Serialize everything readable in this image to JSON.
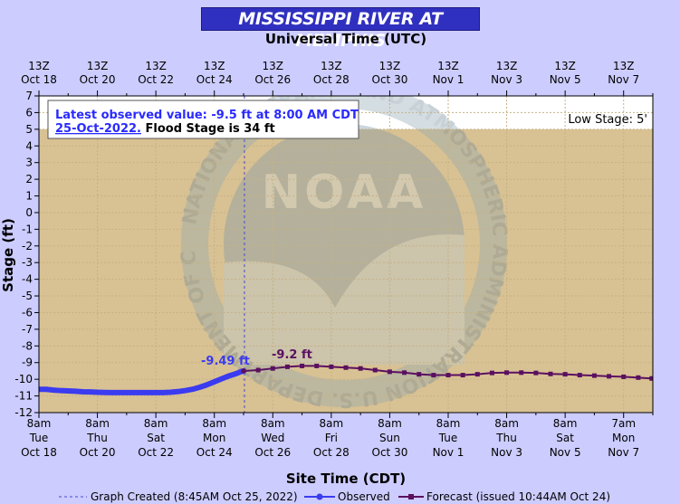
{
  "chart_data": {
    "type": "line",
    "title": "MISSISSIPPI RIVER AT MEMPHIS",
    "top_axis_label": "Universal Time (UTC)",
    "xlabel": "Site Time (CDT)",
    "ylabel": "Stage (ft)",
    "ylim": [
      -12,
      7
    ],
    "y_ticks": [
      7,
      6,
      5,
      4,
      3,
      2,
      1,
      0,
      -1,
      -2,
      -3,
      -4,
      -5,
      -6,
      -7,
      -8,
      -9,
      -10,
      -11,
      -12
    ],
    "top_ticks": [
      {
        "line1": "13Z",
        "line2": "Oct 18"
      },
      {
        "line1": "13Z",
        "line2": "Oct 20"
      },
      {
        "line1": "13Z",
        "line2": "Oct 22"
      },
      {
        "line1": "13Z",
        "line2": "Oct 24"
      },
      {
        "line1": "13Z",
        "line2": "Oct 26"
      },
      {
        "line1": "13Z",
        "line2": "Oct 28"
      },
      {
        "line1": "13Z",
        "line2": "Oct 30"
      },
      {
        "line1": "13Z",
        "line2": "Nov 1"
      },
      {
        "line1": "13Z",
        "line2": "Nov 3"
      },
      {
        "line1": "13Z",
        "line2": "Nov 5"
      },
      {
        "line1": "13Z",
        "line2": "Nov 7"
      }
    ],
    "bottom_ticks": [
      {
        "line1": "8am",
        "line2": "Tue",
        "line3": "Oct 18"
      },
      {
        "line1": "8am",
        "line2": "Thu",
        "line3": "Oct 20"
      },
      {
        "line1": "8am",
        "line2": "Sat",
        "line3": "Oct 22"
      },
      {
        "line1": "8am",
        "line2": "Mon",
        "line3": "Oct 24"
      },
      {
        "line1": "8am",
        "line2": "Wed",
        "line3": "Oct 26"
      },
      {
        "line1": "8am",
        "line2": "Fri",
        "line3": "Oct 28"
      },
      {
        "line1": "8am",
        "line2": "Sun",
        "line3": "Oct 30"
      },
      {
        "line1": "8am",
        "line2": "Tue",
        "line3": "Nov 1"
      },
      {
        "line1": "8am",
        "line2": "Thu",
        "line3": "Nov 3"
      },
      {
        "line1": "8am",
        "line2": "Sat",
        "line3": "Nov 5"
      },
      {
        "line1": "7am",
        "line2": "Mon",
        "line3": "Nov 7"
      }
    ],
    "x_range_days": [
      0,
      21.0
    ],
    "created_day": 7.03,
    "low_stage": 5,
    "low_stage_label": "Low Stage: 5'",
    "info_box": {
      "line1": "Latest observed value: -9.5 ft at 8:00 AM CDT",
      "line2_date": "25-Oct-2022.",
      "line2_rest": " Flood Stage is 34 ft"
    },
    "observed_peak_label": "-9.49 ft",
    "forecast_peak_label": "-9.2 ft",
    "observed": {
      "name": "Observed",
      "points": [
        [
          0.0,
          -10.6
        ],
        [
          0.25,
          -10.6
        ],
        [
          0.5,
          -10.65
        ],
        [
          0.75,
          -10.68
        ],
        [
          1.0,
          -10.7
        ],
        [
          1.25,
          -10.72
        ],
        [
          1.5,
          -10.75
        ],
        [
          1.75,
          -10.76
        ],
        [
          2.0,
          -10.78
        ],
        [
          2.25,
          -10.79
        ],
        [
          2.5,
          -10.8
        ],
        [
          2.75,
          -10.8
        ],
        [
          3.0,
          -10.8
        ],
        [
          3.25,
          -10.8
        ],
        [
          3.5,
          -10.8
        ],
        [
          3.75,
          -10.8
        ],
        [
          4.0,
          -10.8
        ],
        [
          4.25,
          -10.8
        ],
        [
          4.5,
          -10.78
        ],
        [
          4.75,
          -10.74
        ],
        [
          5.0,
          -10.68
        ],
        [
          5.25,
          -10.6
        ],
        [
          5.5,
          -10.48
        ],
        [
          5.75,
          -10.33
        ],
        [
          6.0,
          -10.15
        ],
        [
          6.25,
          -9.97
        ],
        [
          6.5,
          -9.8
        ],
        [
          6.75,
          -9.66
        ],
        [
          6.9,
          -9.55
        ],
        [
          7.0,
          -9.5
        ]
      ]
    },
    "forecast": {
      "name": "Forecast (issued 10:44AM Oct 24)",
      "points": [
        [
          7.0,
          -9.5
        ],
        [
          7.5,
          -9.45
        ],
        [
          8.0,
          -9.35
        ],
        [
          8.5,
          -9.25
        ],
        [
          9.0,
          -9.2
        ],
        [
          9.5,
          -9.2
        ],
        [
          10.0,
          -9.25
        ],
        [
          10.5,
          -9.3
        ],
        [
          11.0,
          -9.35
        ],
        [
          11.5,
          -9.45
        ],
        [
          12.0,
          -9.55
        ],
        [
          12.5,
          -9.6
        ],
        [
          13.0,
          -9.7
        ],
        [
          13.5,
          -9.75
        ],
        [
          14.0,
          -9.75
        ],
        [
          14.5,
          -9.75
        ],
        [
          15.0,
          -9.7
        ],
        [
          15.5,
          -9.62
        ],
        [
          16.0,
          -9.6
        ],
        [
          16.5,
          -9.6
        ],
        [
          17.0,
          -9.62
        ],
        [
          17.5,
          -9.68
        ],
        [
          18.0,
          -9.7
        ],
        [
          18.5,
          -9.75
        ],
        [
          19.0,
          -9.78
        ],
        [
          19.5,
          -9.82
        ],
        [
          20.0,
          -9.85
        ],
        [
          20.5,
          -9.9
        ],
        [
          20.96,
          -9.95
        ]
      ]
    },
    "legend": {
      "created": "Graph Created (8:45AM Oct 25, 2022)",
      "observed": "Observed",
      "forecast": "Forecast (issued 10:44AM Oct 24)"
    },
    "watermark": {
      "text": "NOAA",
      "ring_text": "NATIONAL OCEANIC AND ATMOSPHERIC ADMINISTRATION U.S. DEPARTMENT OF COMMERCE"
    },
    "colors": {
      "background": "#ccccff",
      "plot_fill": "#d8c193",
      "plot_above_low": "#ffffff",
      "observed": "#3b3bf0",
      "forecast": "#5a1060",
      "title_bar": "#3030c0",
      "grid": "#c8b898",
      "info_text": "#2a2aff"
    }
  }
}
